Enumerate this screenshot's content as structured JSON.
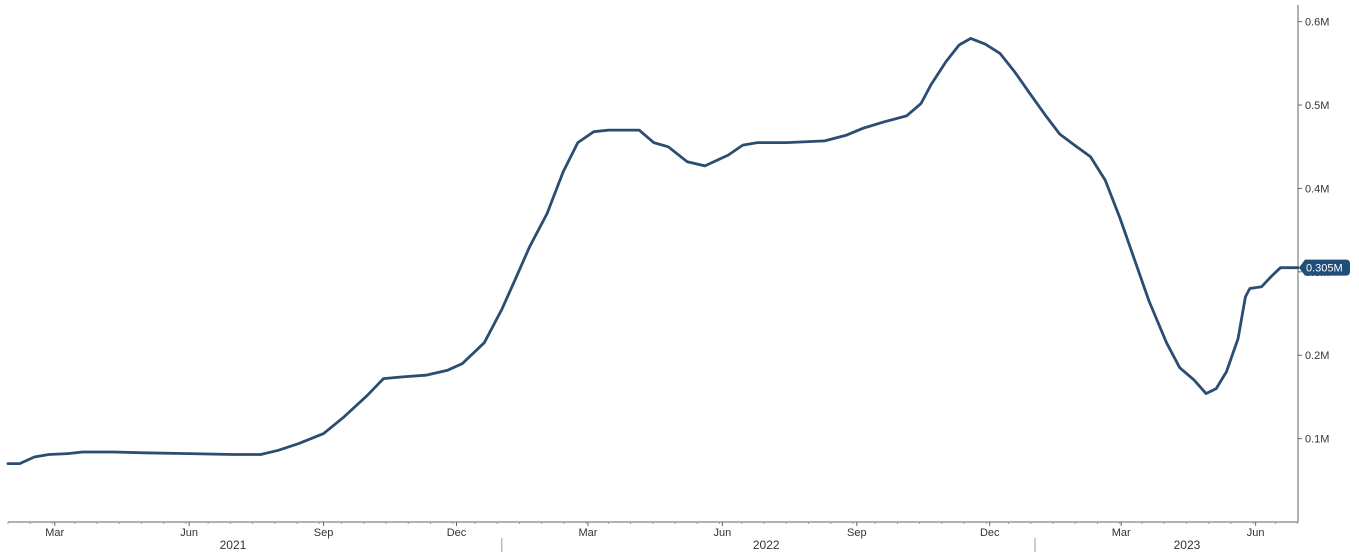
{
  "chart_data": {
    "type": "line",
    "title": "",
    "xlabel": "",
    "ylabel": "",
    "ylim": [
      0,
      0.62
    ],
    "grid": false,
    "y_ticks": [
      {
        "value": 0.1,
        "label": "0.1M"
      },
      {
        "value": 0.2,
        "label": "0.2M"
      },
      {
        "value": 0.3,
        "label": "0.3M"
      },
      {
        "value": 0.4,
        "label": "0.4M"
      },
      {
        "value": 0.5,
        "label": "0.5M"
      },
      {
        "value": 0.6,
        "label": "0.6M"
      }
    ],
    "x_month_ticks": [
      {
        "date": "2021-03-01",
        "label": "Mar"
      },
      {
        "date": "2021-06-01",
        "label": "Jun"
      },
      {
        "date": "2021-09-01",
        "label": "Sep"
      },
      {
        "date": "2021-12-01",
        "label": "Dec"
      },
      {
        "date": "2022-03-01",
        "label": "Mar"
      },
      {
        "date": "2022-06-01",
        "label": "Jun"
      },
      {
        "date": "2022-09-01",
        "label": "Sep"
      },
      {
        "date": "2022-12-01",
        "label": "Dec"
      },
      {
        "date": "2023-03-01",
        "label": "Mar"
      },
      {
        "date": "2023-06-01",
        "label": "Jun"
      }
    ],
    "x_year_labels": [
      {
        "date": "2021-07-01",
        "label": "2021"
      },
      {
        "date": "2022-07-01",
        "label": "2022"
      },
      {
        "date": "2023-04-15",
        "label": "2023"
      }
    ],
    "x_year_separators": [
      "2022-01-01",
      "2023-01-01"
    ],
    "x_range": [
      "2021-01-28",
      "2023-06-30"
    ],
    "last_value_label": {
      "value": 0.305,
      "label": "0.305M",
      "color": "#1f4e79"
    },
    "series": [
      {
        "color": "#2b4d72",
        "points": [
          [
            "2021-01-28",
            0.07
          ],
          [
            "2021-02-05",
            0.07
          ],
          [
            "2021-02-15",
            0.078
          ],
          [
            "2021-02-25",
            0.081
          ],
          [
            "2021-03-10",
            0.082
          ],
          [
            "2021-03-20",
            0.084
          ],
          [
            "2021-04-10",
            0.084
          ],
          [
            "2021-05-01",
            0.083
          ],
          [
            "2021-06-01",
            0.082
          ],
          [
            "2021-07-01",
            0.081
          ],
          [
            "2021-07-20",
            0.081
          ],
          [
            "2021-08-01",
            0.086
          ],
          [
            "2021-08-15",
            0.094
          ],
          [
            "2021-09-01",
            0.106
          ],
          [
            "2021-09-15",
            0.126
          ],
          [
            "2021-10-01",
            0.152
          ],
          [
            "2021-10-12",
            0.172
          ],
          [
            "2021-10-25",
            0.174
          ],
          [
            "2021-11-10",
            0.176
          ],
          [
            "2021-11-25",
            0.182
          ],
          [
            "2021-12-05",
            0.19
          ],
          [
            "2021-12-20",
            0.215
          ],
          [
            "2022-01-01",
            0.255
          ],
          [
            "2022-01-10",
            0.29
          ],
          [
            "2022-01-20",
            0.33
          ],
          [
            "2022-02-01",
            0.37
          ],
          [
            "2022-02-12",
            0.42
          ],
          [
            "2022-02-22",
            0.455
          ],
          [
            "2022-03-05",
            0.468
          ],
          [
            "2022-03-15",
            0.47
          ],
          [
            "2022-04-05",
            0.47
          ],
          [
            "2022-04-15",
            0.455
          ],
          [
            "2022-04-25",
            0.45
          ],
          [
            "2022-05-08",
            0.432
          ],
          [
            "2022-05-20",
            0.427
          ],
          [
            "2022-06-05",
            0.44
          ],
          [
            "2022-06-15",
            0.452
          ],
          [
            "2022-06-25",
            0.455
          ],
          [
            "2022-07-15",
            0.455
          ],
          [
            "2022-08-10",
            0.457
          ],
          [
            "2022-08-25",
            0.464
          ],
          [
            "2022-09-05",
            0.472
          ],
          [
            "2022-09-20",
            0.48
          ],
          [
            "2022-10-05",
            0.487
          ],
          [
            "2022-10-15",
            0.502
          ],
          [
            "2022-10-22",
            0.525
          ],
          [
            "2022-11-01",
            0.552
          ],
          [
            "2022-11-10",
            0.572
          ],
          [
            "2022-11-18",
            0.58
          ],
          [
            "2022-11-28",
            0.573
          ],
          [
            "2022-12-08",
            0.562
          ],
          [
            "2022-12-18",
            0.54
          ],
          [
            "2022-12-28",
            0.515
          ],
          [
            "2023-01-08",
            0.488
          ],
          [
            "2023-01-18",
            0.465
          ],
          [
            "2023-01-28",
            0.452
          ],
          [
            "2023-02-08",
            0.438
          ],
          [
            "2023-02-18",
            0.41
          ],
          [
            "2023-02-28",
            0.365
          ],
          [
            "2023-03-10",
            0.315
          ],
          [
            "2023-03-20",
            0.265
          ],
          [
            "2023-04-01",
            0.215
          ],
          [
            "2023-04-10",
            0.185
          ],
          [
            "2023-04-20",
            0.17
          ],
          [
            "2023-04-28",
            0.154
          ],
          [
            "2023-05-05",
            0.16
          ],
          [
            "2023-05-12",
            0.18
          ],
          [
            "2023-05-20",
            0.22
          ],
          [
            "2023-05-25",
            0.27
          ],
          [
            "2023-05-28",
            0.28
          ],
          [
            "2023-06-05",
            0.282
          ],
          [
            "2023-06-12",
            0.295
          ],
          [
            "2023-06-18",
            0.305
          ],
          [
            "2023-06-30",
            0.305
          ]
        ]
      }
    ]
  }
}
